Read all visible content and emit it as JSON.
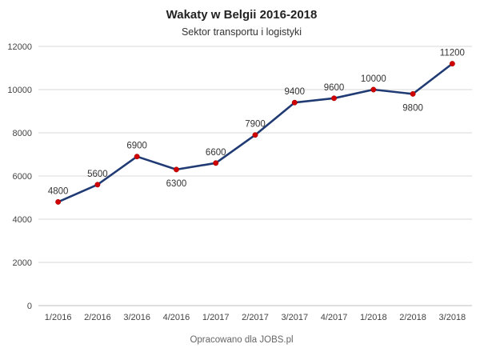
{
  "chart_data": {
    "type": "line",
    "title": "Wakaty w Belgii 2016-2018",
    "subtitle": "Sektor transportu i logistyki",
    "xlabel": "",
    "ylabel": "",
    "footer": "Opracowano dla JOBS.pl",
    "categories": [
      "1/2016",
      "2/2016",
      "3/2016",
      "4/2016",
      "1/2017",
      "2/2017",
      "3/2017",
      "4/2017",
      "1/2018",
      "2/2018",
      "3/2018"
    ],
    "series": [
      {
        "values": [
          4800,
          5600,
          6900,
          6300,
          6600,
          7900,
          9400,
          9600,
          10000,
          9800,
          11200
        ],
        "labels": [
          "4800",
          "5600",
          "6900",
          "6300",
          "6600",
          "7900",
          "9400",
          "9600",
          "10000",
          "9800",
          "11200"
        ],
        "label_side": [
          "above",
          "above",
          "above",
          "below",
          "above",
          "above",
          "above",
          "above",
          "above",
          "below",
          "above"
        ],
        "line_color": "#203b73",
        "point_color": "#d00000"
      }
    ],
    "ylim": [
      0,
      12000
    ],
    "yticks": [
      0,
      2000,
      4000,
      6000,
      8000,
      10000,
      12000
    ],
    "ytick_labels": [
      "0",
      "2000",
      "4000",
      "6000",
      "8000",
      "10000",
      "12000"
    ],
    "grid": true,
    "legend": "none"
  }
}
